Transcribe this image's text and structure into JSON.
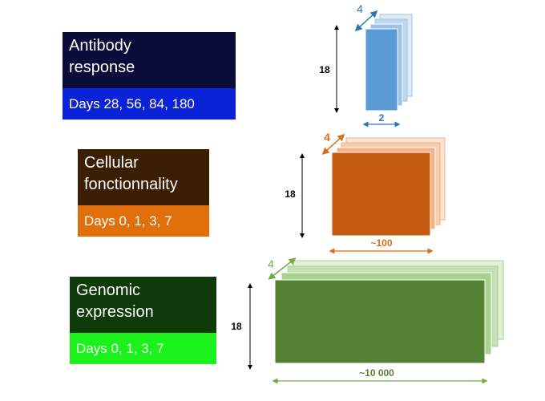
{
  "panels": [
    {
      "id": "antibody",
      "title_line1": "Antibody",
      "title_line2": "response",
      "days": "Days 28, 56, 84, 180",
      "title_color": "#0b0c3a",
      "days_color": "#0a23d9",
      "tensor": {
        "height_label": "18",
        "width_label": "2",
        "depth_label": "4",
        "front_color": "#5b9bd5",
        "layer_colors": [
          "#9dc3e6",
          "#bdd7ee",
          "#deebf7"
        ],
        "arrow_color": "#2e75b6"
      }
    },
    {
      "id": "cellular",
      "title_line1": "Cellular",
      "title_line2": "fonctionnality",
      "days": "Days 0, 1, 3, 7",
      "title_color": "#3b1f04",
      "days_color": "#e1700c",
      "tensor": {
        "height_label": "18",
        "width_label": "~100",
        "depth_label": "4",
        "front_color": "#c55a11",
        "layer_colors": [
          "#f4b183",
          "#f8cbad",
          "#fbe5d6"
        ],
        "arrow_color": "#e06b16"
      }
    },
    {
      "id": "genomic",
      "title_line1": "Genomic",
      "title_line2": "expression",
      "days": "Days 0, 1, 3, 7",
      "title_color": "#0f3a0a",
      "days_color": "#1bf21b",
      "tensor": {
        "height_label": "18",
        "width_label": "~10 000",
        "depth_label": "4",
        "front_color": "#548235",
        "layer_colors": [
          "#a9d18e",
          "#c5e0b4",
          "#e2f0d9"
        ],
        "arrow_color": "#70ad47"
      }
    }
  ]
}
